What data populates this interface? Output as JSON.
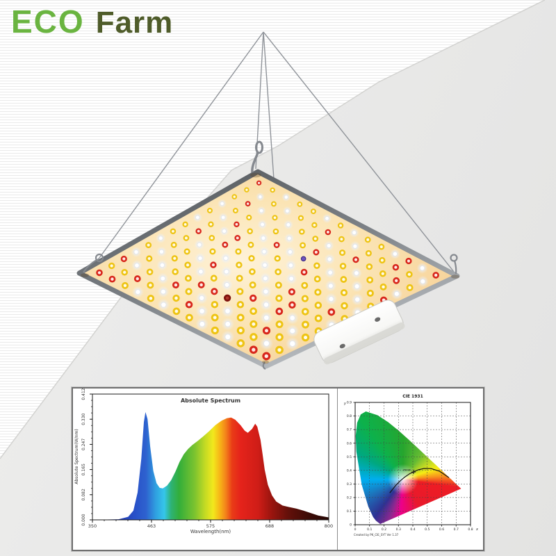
{
  "brand": {
    "name_primary": "ECO",
    "name_secondary": "Farm",
    "primary_color": "#6ab440",
    "secondary_color": "#4f5c2a"
  },
  "fixture": {
    "description": "quantum board LED grow light hanging on four steel wires",
    "panel_face_color": "#f7d49c",
    "panel_face_highlight": "#fef2d8",
    "panel_rim_dark": "#4e5256",
    "panel_rim_light": "#b9bdc1",
    "wire_color": "#8f9399",
    "hook_color": "#85898f",
    "driver_box_color": "#f7f7f5",
    "driver_box_shade": "#d8d8d4",
    "screw_color": "#6a6a6a",
    "led_grid": {
      "rows": 14,
      "cols": 14
    },
    "led_types": {
      "white": {
        "ring": "#dfe5ee",
        "center": "#ffffff",
        "glow": "#e8f0ff"
      },
      "yellow": {
        "ring": "#eec414",
        "center": "#fffbe8"
      },
      "red": {
        "ring": "#d8271c",
        "center": "#ffe9e4"
      },
      "purple": {
        "ring": "#3f2d85",
        "center": "#6f55c0"
      },
      "darkred": {
        "ring": "#7e120d",
        "center": "#b0352a"
      }
    }
  },
  "chart_data": [
    {
      "type": "area",
      "title": "Absolute Spectrum",
      "xlabel": "Wavelength(nm)",
      "ylabel": "Absolute Spectrum(W/nm)",
      "xlim": [
        350,
        800
      ],
      "ylim": [
        0,
        0.412
      ],
      "xticks": [
        "350",
        "463",
        "575",
        "688",
        "800"
      ],
      "yticks": [
        "0.000",
        "0.082",
        "0.165",
        "0.247",
        "0.330",
        "0.412"
      ],
      "x": [
        350,
        400,
        418,
        428,
        436,
        443,
        448,
        451,
        455,
        460,
        466,
        472,
        478,
        484,
        492,
        500,
        508,
        516,
        524,
        532,
        540,
        550,
        560,
        572,
        584,
        596,
        606,
        614,
        622,
        632,
        640,
        646,
        654,
        660,
        664,
        670,
        674,
        678,
        684,
        692,
        700,
        712,
        724,
        738,
        752,
        766,
        780,
        800
      ],
      "y": [
        0,
        0.002,
        0.01,
        0.03,
        0.09,
        0.2,
        0.32,
        0.353,
        0.33,
        0.24,
        0.16,
        0.12,
        0.105,
        0.103,
        0.112,
        0.13,
        0.158,
        0.19,
        0.215,
        0.232,
        0.245,
        0.258,
        0.272,
        0.29,
        0.31,
        0.325,
        0.333,
        0.335,
        0.328,
        0.31,
        0.292,
        0.285,
        0.298,
        0.315,
        0.305,
        0.262,
        0.215,
        0.165,
        0.115,
        0.08,
        0.06,
        0.047,
        0.042,
        0.037,
        0.03,
        0.022,
        0.014,
        0.008
      ],
      "gradient": [
        [
          350,
          "#141f6e"
        ],
        [
          380,
          "#1f2d9c"
        ],
        [
          430,
          "#2850c8"
        ],
        [
          452,
          "#2e62cf"
        ],
        [
          470,
          "#2f9fe0"
        ],
        [
          487,
          "#35c6ea"
        ],
        [
          500,
          "#2eb274"
        ],
        [
          515,
          "#33ae3a"
        ],
        [
          545,
          "#7cc32f"
        ],
        [
          566,
          "#c8dc23"
        ],
        [
          580,
          "#f2e81c"
        ],
        [
          593,
          "#f7b317"
        ],
        [
          604,
          "#f3831a"
        ],
        [
          616,
          "#e93c17"
        ],
        [
          632,
          "#e5231b"
        ],
        [
          666,
          "#cf1d17"
        ],
        [
          690,
          "#9c150f"
        ],
        [
          722,
          "#64100a"
        ],
        [
          762,
          "#3c0b06"
        ],
        [
          800,
          "#260704"
        ]
      ]
    },
    {
      "type": "scatter",
      "title": "CIE 1931",
      "xlabel": "x",
      "ylabel": "y",
      "xlim": [
        0,
        0.8
      ],
      "ylim": [
        0,
        0.9
      ],
      "xticks": [
        "0",
        "0.1",
        "0.2",
        "0.3",
        "0.4",
        "0.5",
        "0.6",
        "0.7",
        "0.8"
      ],
      "yticks": [
        "0",
        "0.1",
        "0.2",
        "0.3",
        "0.4",
        "0.5",
        "0.6",
        "0.7",
        "0.8",
        "0.9"
      ],
      "grid": "dashed",
      "spectral_locus": [
        [
          0.1741,
          0.005
        ],
        [
          0.144,
          0.0297
        ],
        [
          0.1241,
          0.0578
        ],
        [
          0.0913,
          0.1327
        ],
        [
          0.0454,
          0.295
        ],
        [
          0.0082,
          0.5384
        ],
        [
          0.0039,
          0.6548
        ],
        [
          0.0139,
          0.7502
        ],
        [
          0.0389,
          0.812
        ],
        [
          0.0743,
          0.8338
        ],
        [
          0.1547,
          0.8059
        ],
        [
          0.2296,
          0.7543
        ],
        [
          0.3016,
          0.6923
        ],
        [
          0.3731,
          0.6245
        ],
        [
          0.4441,
          0.5547
        ],
        [
          0.5125,
          0.4866
        ],
        [
          0.5752,
          0.4242
        ],
        [
          0.627,
          0.3725
        ],
        [
          0.6658,
          0.334
        ],
        [
          0.6915,
          0.3083
        ],
        [
          0.714,
          0.2859
        ],
        [
          0.7347,
          0.2653
        ]
      ],
      "planckian_locus": [
        [
          0.24,
          0.234
        ],
        [
          0.2807,
          0.2884
        ],
        [
          0.3135,
          0.3237
        ],
        [
          0.3451,
          0.3516
        ],
        [
          0.3805,
          0.3768
        ],
        [
          0.4369,
          0.4041
        ],
        [
          0.477,
          0.4137
        ],
        [
          0.5267,
          0.4133
        ],
        [
          0.5857,
          0.3931
        ],
        [
          0.6499,
          0.3474
        ]
      ],
      "marked_point": [
        0.405,
        0.388
      ],
      "marked_point_label": "3500K",
      "footnote": "Created by PK_CIE_SYT Ver 1.37"
    }
  ]
}
